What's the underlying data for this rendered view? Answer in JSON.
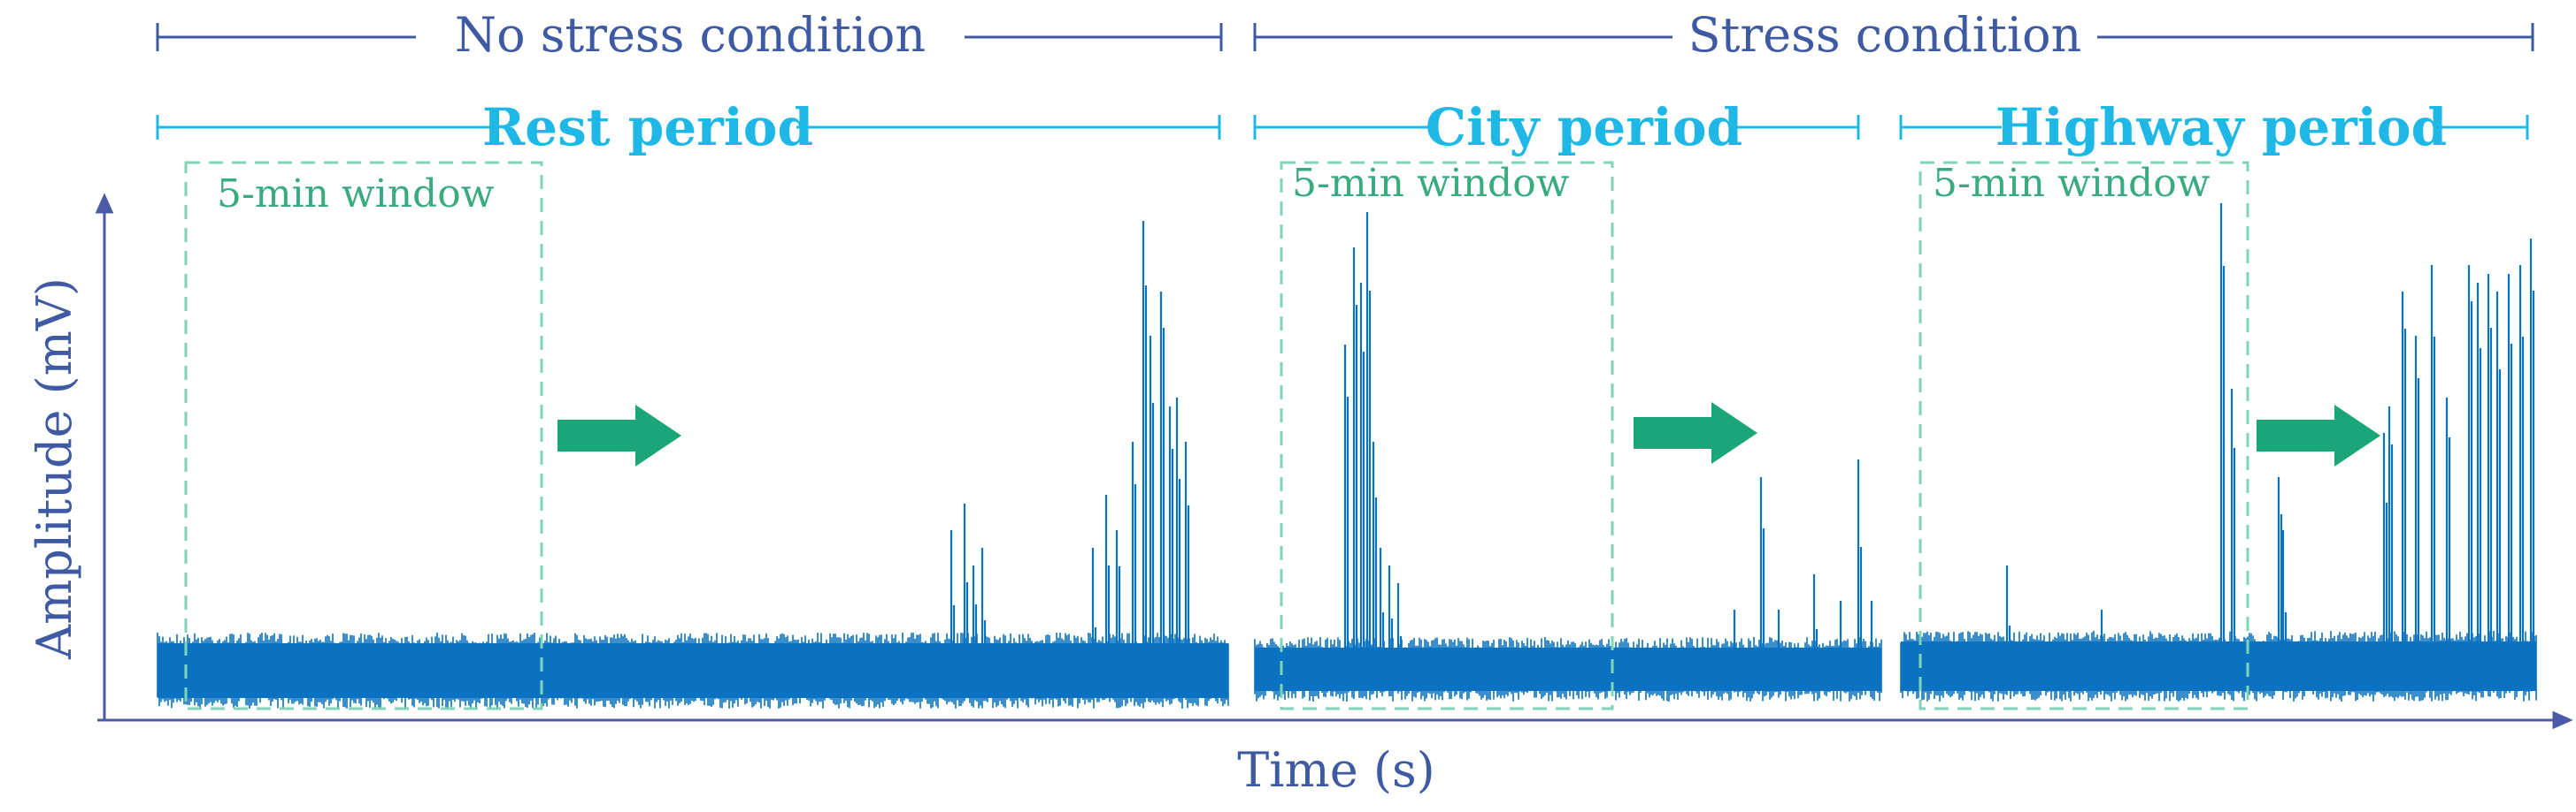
{
  "conditions": {
    "no_stress": "No stress condition",
    "stress": "Stress condition"
  },
  "periods": {
    "rest": "Rest period",
    "city": "City period",
    "highway": "Highway period"
  },
  "window_label": "5-min window",
  "axes": {
    "x_label": "Time (s)",
    "y_label": "Amplitude (mV)"
  },
  "colors": {
    "condition_line": "#3d5aa3",
    "period_line": "#1fb8e6",
    "signal": "#0a72c0",
    "window_box": "#7fd6b4",
    "arrow": "#1aa678",
    "axis": "#4a5aa8"
  },
  "icons": {
    "arrow": "right-arrow-icon"
  }
}
